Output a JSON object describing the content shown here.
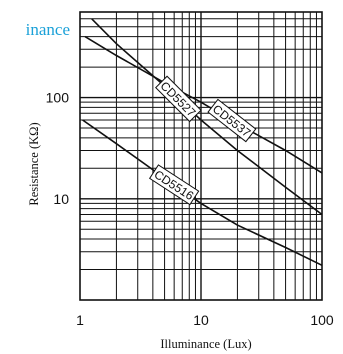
{
  "chart_data": {
    "type": "line",
    "title": "inance",
    "xlabel": "Illuminance (Lux)",
    "ylabel": "Resistance (KΩ)",
    "x_scale": "log",
    "y_scale": "log",
    "xlim": [
      1,
      100
    ],
    "ylim": [
      1,
      700
    ],
    "grid": true,
    "x_tick_labels": [
      "1",
      "10",
      "100"
    ],
    "y_tick_labels": [
      "100",
      "10"
    ],
    "x_ticks": [
      1,
      10,
      100
    ],
    "y_ticks": [
      100,
      10
    ],
    "series": [
      {
        "name": "CD5537",
        "x": [
          1.1,
          2,
          5,
          10,
          20,
          50,
          100
        ],
        "y": [
          400,
          260,
          140,
          90,
          55,
          30,
          18
        ]
      },
      {
        "name": "CD5527",
        "x": [
          1.25,
          2,
          5,
          10,
          20,
          50,
          100
        ],
        "y": [
          600,
          340,
          130,
          60,
          30,
          13,
          7
        ]
      },
      {
        "name": "CD5516",
        "x": [
          1.05,
          2,
          5,
          10,
          20,
          50,
          100
        ],
        "y": [
          60,
          35,
          16,
          9,
          5.5,
          3.3,
          2.2
        ]
      }
    ]
  },
  "colors": {
    "title": "#1ba1d8",
    "line": "#111111"
  }
}
